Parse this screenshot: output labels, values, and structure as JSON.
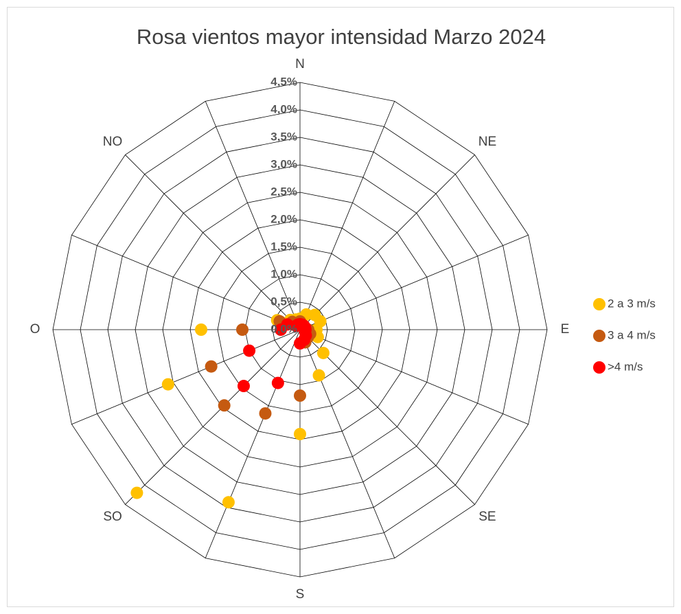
{
  "chart_data": {
    "type": "radar",
    "title": "Rosa vientos mayor intensidad Marzo 2024",
    "categories": [
      "N",
      null,
      "NE",
      null,
      "E",
      null,
      "SE",
      null,
      "S",
      null,
      "SO",
      null,
      "O",
      null,
      "NO",
      null
    ],
    "series": [
      {
        "name": "2 a 3 m/s",
        "color": "#ffc000",
        "values": [
          0.2,
          0.3,
          0.38,
          0.4,
          0.3,
          0.35,
          0.6,
          0.9,
          1.9,
          3.4,
          4.2,
          2.6,
          1.8,
          0.45,
          0.25,
          0.2
        ]
      },
      {
        "name": "3 a 4 m/s",
        "color": "#c55a11",
        "values": [
          0.15,
          0.1,
          0.1,
          0.1,
          0.15,
          0.2,
          0.2,
          0.25,
          1.2,
          1.65,
          1.95,
          1.75,
          1.05,
          0.4,
          0.2,
          0.1
        ]
      },
      {
        "name": ">4 m/s",
        "color": "#ff0000",
        "values": [
          0.1,
          0.1,
          0.1,
          0.1,
          0.1,
          0.1,
          0.15,
          0.2,
          0.25,
          1.05,
          1.45,
          1.0,
          0.35,
          0.25,
          0.1,
          0.1
        ]
      }
    ],
    "ylim": [
      0,
      4.5
    ],
    "yticks": [
      {
        "value": 0,
        "label": "0,0%"
      },
      {
        "value": 0.5,
        "label": "0,5%"
      },
      {
        "value": 1,
        "label": "1,0%"
      },
      {
        "value": 1.5,
        "label": "1,5%"
      },
      {
        "value": 2,
        "label": "2,0%"
      },
      {
        "value": 2.5,
        "label": "2,5%"
      },
      {
        "value": 3,
        "label": "3,0%"
      },
      {
        "value": 3.5,
        "label": "3,5%"
      },
      {
        "value": 4,
        "label": "4,0%"
      },
      {
        "value": 4.5,
        "label": "4,5%"
      }
    ],
    "grid": true,
    "legend": "right"
  }
}
